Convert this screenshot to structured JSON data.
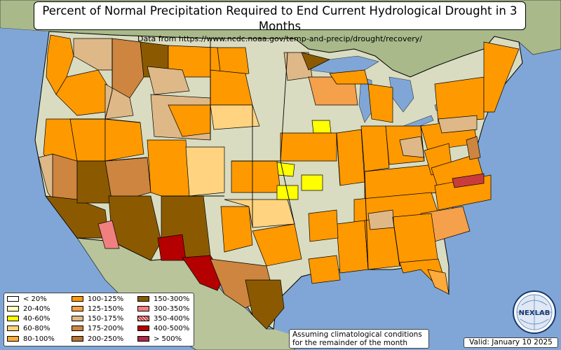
{
  "title": "Percent of Normal Precipitation Required to End Current Hydrological Drought in 3 Months",
  "subtitle": "Data from https://www.ncdc.noaa.gov/temp-and-precip/drought/recovery/",
  "legend": [
    {
      "label": "< 20%",
      "color": "#ffffff"
    },
    {
      "label": "20-40%",
      "color": "#ffffbe"
    },
    {
      "label": "40-60%",
      "color": "#ffff00"
    },
    {
      "label": "60-80%",
      "color": "#ffd37f"
    },
    {
      "label": "80-100%",
      "color": "#ffaa3c"
    },
    {
      "label": "100-125%",
      "color": "#ff9900"
    },
    {
      "label": "125-150%",
      "color": "#f5a04a"
    },
    {
      "label": "150-175%",
      "color": "#deb887"
    },
    {
      "label": "175-200%",
      "color": "#cd853f"
    },
    {
      "label": "200-250%",
      "color": "#b87333"
    },
    {
      "label": "150-300%",
      "color": "#8b5a00"
    },
    {
      "label": "300-350%",
      "color": "#f08080"
    },
    {
      "label": "350-400%",
      "color": "#c83c3c"
    },
    {
      "label": "400-500%",
      "color": "#b40000"
    },
    {
      "label": "> 500%",
      "color": "#b0284b"
    }
  ],
  "note_line1": "Assuming climatological conditions",
  "note_line2": "for the remainder of the month",
  "valid": "Valid: January 10 2025",
  "logo_text": "NEXLAB"
}
